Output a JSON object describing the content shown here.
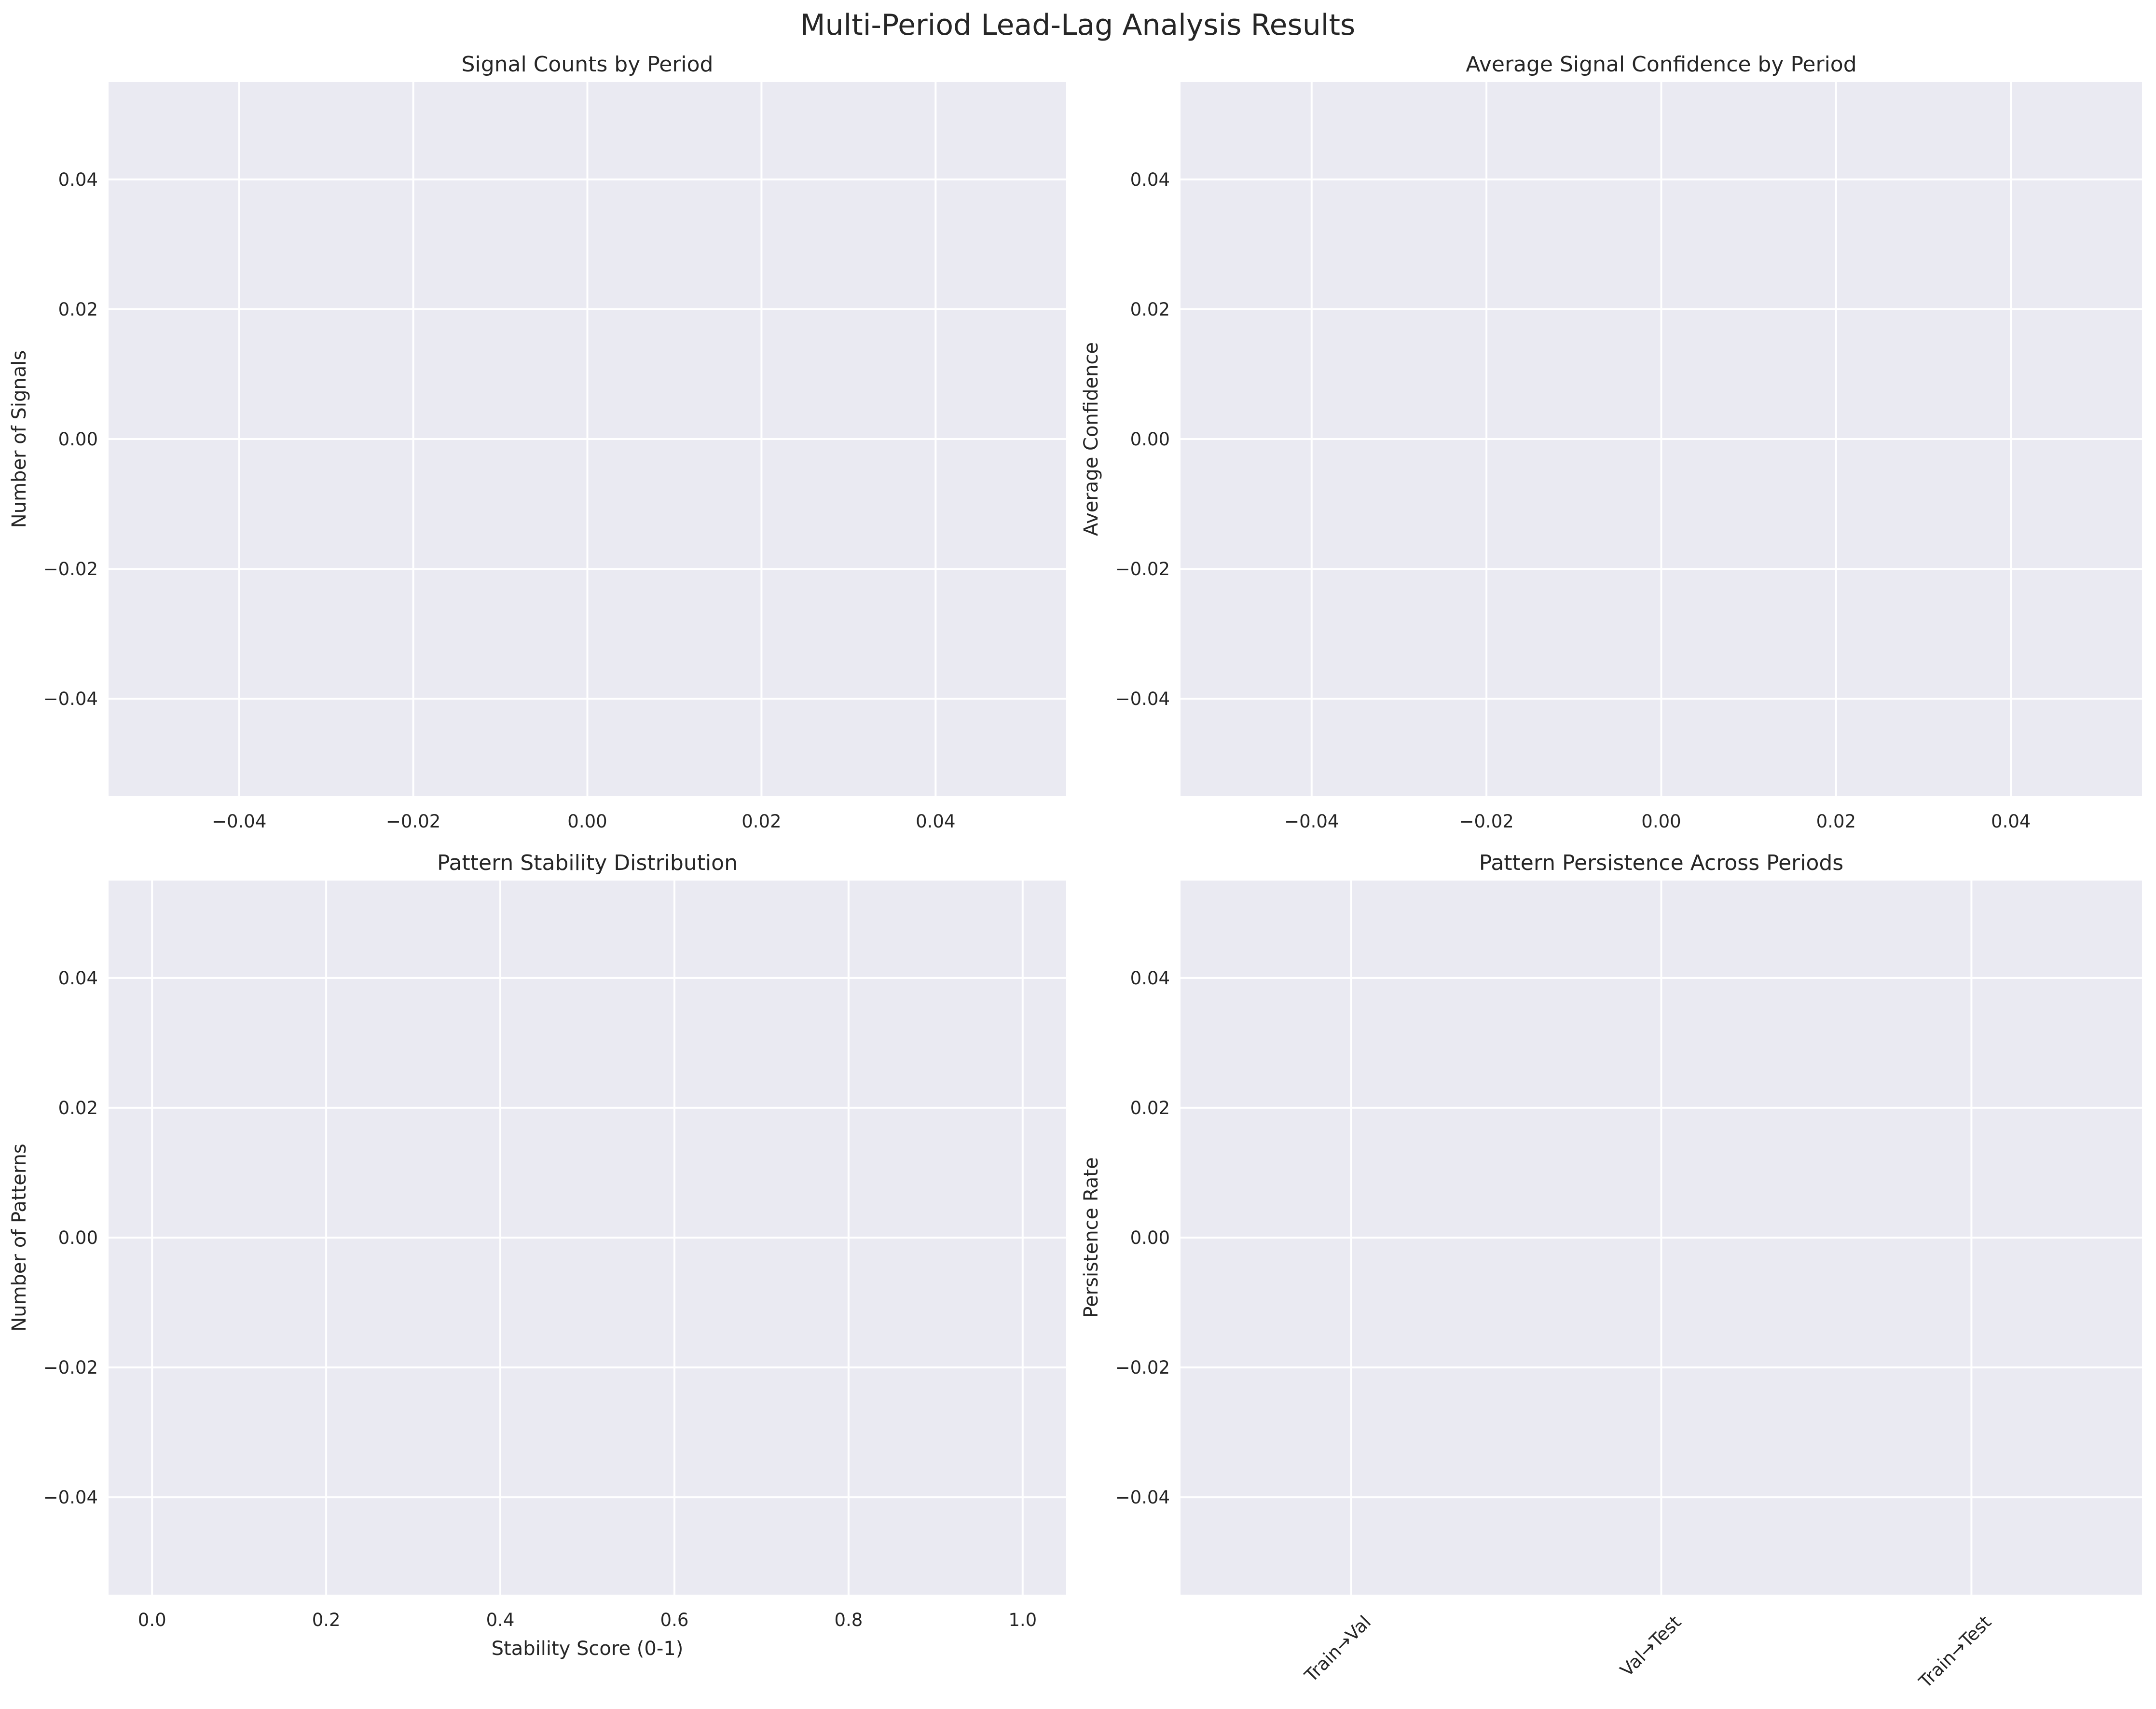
{
  "figure": {
    "title": "Multi-Period Lead-Lag Analysis Results"
  },
  "style": {
    "plot_background": "#eaeaf2",
    "grid_color": "#ffffff",
    "text_color": "#262626"
  },
  "chart_data": [
    {
      "id": "signal-counts",
      "type": "bar",
      "title": "Signal Counts by Period",
      "xlabel": "",
      "ylabel": "Number of Signals",
      "xlim": [
        -0.055,
        0.055
      ],
      "ylim": [
        -0.055,
        0.055
      ],
      "x_ticks": [
        -0.04,
        -0.02,
        0.0,
        0.02,
        0.04
      ],
      "x_tick_labels": [
        "−0.04",
        "−0.02",
        "0.00",
        "0.02",
        "0.04"
      ],
      "y_ticks": [
        -0.04,
        -0.02,
        0.0,
        0.02,
        0.04
      ],
      "y_tick_labels": [
        "−0.04",
        "−0.02",
        "0.00",
        "0.02",
        "0.04"
      ],
      "x_tick_rotation": 0,
      "grid": true,
      "series": []
    },
    {
      "id": "avg-confidence",
      "type": "bar",
      "title": "Average Signal Confidence by Period",
      "xlabel": "",
      "ylabel": "Average Confidence",
      "xlim": [
        -0.055,
        0.055
      ],
      "ylim": [
        -0.055,
        0.055
      ],
      "x_ticks": [
        -0.04,
        -0.02,
        0.0,
        0.02,
        0.04
      ],
      "x_tick_labels": [
        "−0.04",
        "−0.02",
        "0.00",
        "0.02",
        "0.04"
      ],
      "y_ticks": [
        -0.04,
        -0.02,
        0.0,
        0.02,
        0.04
      ],
      "y_tick_labels": [
        "−0.04",
        "−0.02",
        "0.00",
        "0.02",
        "0.04"
      ],
      "x_tick_rotation": 0,
      "grid": true,
      "series": []
    },
    {
      "id": "stability-dist",
      "type": "bar",
      "title": "Pattern Stability Distribution",
      "xlabel": "Stability Score (0-1)",
      "ylabel": "Number of Patterns",
      "xlim": [
        -0.05,
        1.05
      ],
      "ylim": [
        -0.055,
        0.055
      ],
      "x_ticks": [
        0.0,
        0.2,
        0.4,
        0.6,
        0.8,
        1.0
      ],
      "x_tick_labels": [
        "0.0",
        "0.2",
        "0.4",
        "0.6",
        "0.8",
        "1.0"
      ],
      "y_ticks": [
        -0.04,
        -0.02,
        0.0,
        0.02,
        0.04
      ],
      "y_tick_labels": [
        "−0.04",
        "−0.02",
        "0.00",
        "0.02",
        "0.04"
      ],
      "x_tick_rotation": 0,
      "grid": true,
      "series": []
    },
    {
      "id": "persistence",
      "type": "bar",
      "title": "Pattern Persistence Across Periods",
      "xlabel": "",
      "ylabel": "Persistence Rate",
      "xlim": [
        -0.55,
        2.55
      ],
      "ylim": [
        -0.055,
        0.055
      ],
      "x_ticks": [
        0,
        1,
        2
      ],
      "x_tick_labels": [
        "Train→Val",
        "Val→Test",
        "Train→Test"
      ],
      "y_ticks": [
        -0.04,
        -0.02,
        0.0,
        0.02,
        0.04
      ],
      "y_tick_labels": [
        "−0.04",
        "−0.02",
        "0.00",
        "0.02",
        "0.04"
      ],
      "x_tick_rotation": -45,
      "grid": true,
      "series": []
    }
  ]
}
